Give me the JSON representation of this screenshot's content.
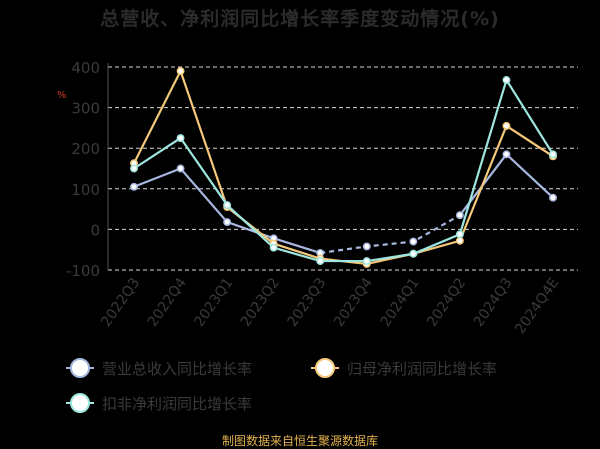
{
  "chart_data": {
    "type": "line",
    "title": "总营收、净利润同比增长率季度变动情况(%)",
    "ylabel": "%",
    "xlabel": "",
    "categories": [
      "2022Q3",
      "2022Q4",
      "2023Q1",
      "2023Q2",
      "2023Q3",
      "2023Q4",
      "2024Q1",
      "2024Q2",
      "2024Q3",
      "2024Q4E"
    ],
    "ylim": [
      -100,
      400
    ],
    "yticks": [
      -100,
      0,
      100,
      200,
      300,
      400
    ],
    "grid": true,
    "legend_position": "bottom-left",
    "series": [
      {
        "name": "营业总收入同比增长率",
        "color": "#a9b8e0",
        "dashed_from_index": 4,
        "values": [
          105,
          150,
          18,
          -22,
          -58,
          -42,
          -30,
          35,
          185,
          78
        ]
      },
      {
        "name": "归母净利润同比增长率",
        "color": "#f5c97a",
        "values": [
          163,
          390,
          55,
          -35,
          -72,
          -85,
          -60,
          -28,
          255,
          180
        ]
      },
      {
        "name": "扣非净利润同比增长率",
        "color": "#9ee6e0",
        "values": [
          150,
          225,
          60,
          -45,
          -78,
          -78,
          -60,
          -12,
          368,
          185
        ]
      }
    ]
  },
  "footer": "制图数据来自恒生聚源数据库"
}
